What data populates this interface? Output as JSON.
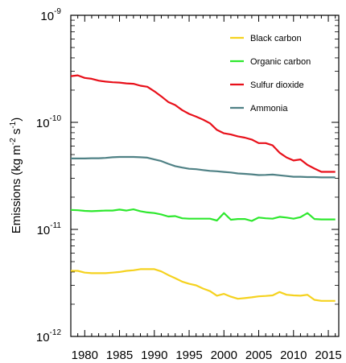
{
  "chart_data": {
    "type": "line",
    "title": "",
    "xlabel": "",
    "ylabel": {
      "main": "Emissions (kg m",
      "exp1": "-2",
      "mid": " s",
      "exp2": "-1",
      "end": ")"
    },
    "y_scale": "log",
    "ylim": [
      1e-12,
      1e-09
    ],
    "xlim": [
      1978,
      2016.5
    ],
    "y_ticks": [
      {
        "base": "10",
        "exp": "-9"
      },
      {
        "base": "10",
        "exp": "-10"
      },
      {
        "base": "10",
        "exp": "-11"
      },
      {
        "base": "10",
        "exp": "-12"
      }
    ],
    "x_ticks": [
      "1980",
      "1985",
      "1990",
      "1995",
      "2000",
      "2005",
      "2010",
      "2015"
    ],
    "legend_position": "top-right",
    "grid": false,
    "x": [
      1978,
      1979,
      1980,
      1981,
      1982,
      1983,
      1984,
      1985,
      1986,
      1987,
      1988,
      1989,
      1990,
      1991,
      1992,
      1993,
      1994,
      1995,
      1996,
      1997,
      1998,
      1999,
      2000,
      2001,
      2002,
      2003,
      2004,
      2005,
      2006,
      2007,
      2008,
      2009,
      2010,
      2011,
      2012,
      2013,
      2014,
      2015,
      2016
    ],
    "series": [
      {
        "name": "Black carbon",
        "color": "#f5d21f",
        "values": [
          4.1e-12,
          4.1e-12,
          3.95e-12,
          3.9e-12,
          3.9e-12,
          3.9e-12,
          3.95e-12,
          4e-12,
          4.1e-12,
          4.15e-12,
          4.25e-12,
          4.25e-12,
          4.25e-12,
          4.05e-12,
          3.75e-12,
          3.5e-12,
          3.25e-12,
          3.1e-12,
          3e-12,
          2.8e-12,
          2.65e-12,
          2.4e-12,
          2.5e-12,
          2.35e-12,
          2.25e-12,
          2.28e-12,
          2.32e-12,
          2.37e-12,
          2.39e-12,
          2.42e-12,
          2.6e-12,
          2.45e-12,
          2.42e-12,
          2.4e-12,
          2.45e-12,
          2.2e-12,
          2.15e-12,
          2.15e-12,
          2.15e-12
        ]
      },
      {
        "name": "Organic carbon",
        "color": "#2ee82e",
        "values": [
          1.52e-11,
          1.51e-11,
          1.49e-11,
          1.48e-11,
          1.49e-11,
          1.5e-11,
          1.5e-11,
          1.53e-11,
          1.5e-11,
          1.54e-11,
          1.48e-11,
          1.44e-11,
          1.42e-11,
          1.38e-11,
          1.32e-11,
          1.33e-11,
          1.27e-11,
          1.26e-11,
          1.26e-11,
          1.26e-11,
          1.26e-11,
          1.21e-11,
          1.42e-11,
          1.23e-11,
          1.25e-11,
          1.25e-11,
          1.2e-11,
          1.29e-11,
          1.27e-11,
          1.26e-11,
          1.31e-11,
          1.29e-11,
          1.26e-11,
          1.3e-11,
          1.42e-11,
          1.25e-11,
          1.24e-11,
          1.24e-11,
          1.24e-11
        ]
      },
      {
        "name": "Sulfur dioxide",
        "color": "#e8101a",
        "values": [
          2.7e-10,
          2.75e-10,
          2.6e-10,
          2.55e-10,
          2.45e-10,
          2.4e-10,
          2.37e-10,
          2.35e-10,
          2.31e-10,
          2.29e-10,
          2.2e-10,
          2.15e-10,
          1.95e-10,
          1.75e-10,
          1.55e-10,
          1.45e-10,
          1.3e-10,
          1.2e-10,
          1.13e-10,
          1.06e-10,
          9.8e-11,
          8.5e-11,
          7.9e-11,
          7.7e-11,
          7.4e-11,
          7.2e-11,
          6.9e-11,
          6.4e-11,
          6.4e-11,
          6.1e-11,
          5.2e-11,
          4.7e-11,
          4.4e-11,
          4.5e-11,
          4e-11,
          3.7e-11,
          3.45e-11,
          3.45e-11,
          3.45e-11
        ]
      },
      {
        "name": "Ammonia",
        "color": "#4f8185",
        "values": [
          4.6e-11,
          4.6e-11,
          4.6e-11,
          4.62e-11,
          4.62e-11,
          4.65e-11,
          4.72e-11,
          4.75e-11,
          4.75e-11,
          4.75e-11,
          4.72e-11,
          4.68e-11,
          4.5e-11,
          4.35e-11,
          4.1e-11,
          3.9e-11,
          3.78e-11,
          3.68e-11,
          3.65e-11,
          3.58e-11,
          3.52e-11,
          3.49e-11,
          3.44e-11,
          3.4e-11,
          3.33e-11,
          3.3e-11,
          3.27e-11,
          3.22e-11,
          3.23e-11,
          3.25e-11,
          3.2e-11,
          3.15e-11,
          3.1e-11,
          3.1e-11,
          3.08e-11,
          3.08e-11,
          3.06e-11,
          3.06e-11,
          3.06e-11
        ]
      }
    ]
  }
}
